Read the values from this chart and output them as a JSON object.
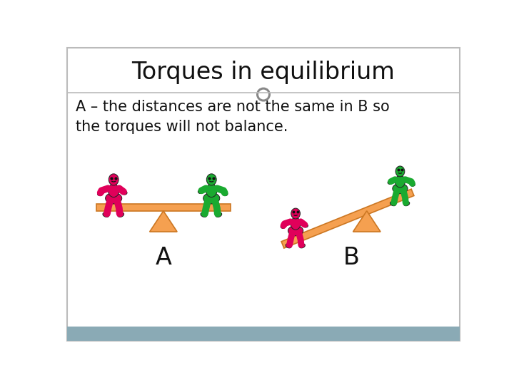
{
  "title": "Torques in equilibrium",
  "subtitle": "A – the distances are not the same in B so\nthe torques will not balance.",
  "background_color": "#ffffff",
  "border_color": "#bbbbbb",
  "bottom_bar_color": "#8aaab5",
  "title_fontsize": 24,
  "subtitle_fontsize": 15,
  "label_fontsize": 24,
  "seesaw_color": "#f5a050",
  "pivot_color": "#f5a050",
  "seesaw_edge": "#cc7722",
  "pink_color": "#e0005a",
  "green_color": "#1aaa30",
  "head_outline": "#222222",
  "label_A": "A",
  "label_B": "B",
  "circle_color": "#888888"
}
